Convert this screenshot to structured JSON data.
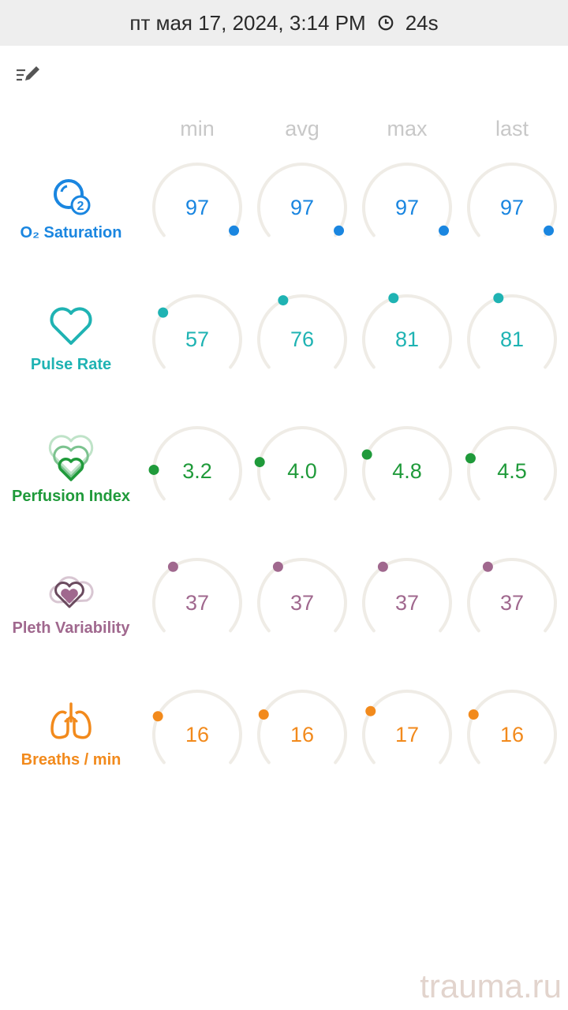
{
  "header": {
    "datetime": "пт мая 17, 2024, 3:14 PM",
    "duration": "24s",
    "icon": "clock-icon"
  },
  "toolbar": {
    "edit_icon": "list-edit-icon"
  },
  "columns": [
    "min",
    "avg",
    "max",
    "last"
  ],
  "metrics": [
    {
      "name": "O₂ Saturation",
      "icon": "o2-saturation-icon",
      "color": "#1a86e0",
      "values": [
        "97",
        "97",
        "97",
        "97"
      ],
      "levels": [
        0.97,
        0.97,
        0.97,
        0.97
      ]
    },
    {
      "name": "Pulse Rate",
      "icon": "heart-icon",
      "color": "#1fb3b3",
      "values": [
        "57",
        "76",
        "81",
        "81"
      ],
      "levels": [
        0.3,
        0.4,
        0.43,
        0.43
      ]
    },
    {
      "name": "Perfusion Index",
      "icon": "perfusion-hearts-icon",
      "color": "#1f9a3a",
      "values": [
        "3.2",
        "4.0",
        "4.8",
        "4.5"
      ],
      "levels": [
        0.16,
        0.2,
        0.24,
        0.22
      ]
    },
    {
      "name": "Pleth Variability",
      "icon": "pleth-cloud-heart-icon",
      "color": "#a0688e",
      "values": [
        "37",
        "37",
        "37",
        "37"
      ],
      "levels": [
        0.37,
        0.37,
        0.37,
        0.37
      ]
    },
    {
      "name": "Breaths / min",
      "icon": "lungs-icon",
      "color": "#f28a1c",
      "values": [
        "16",
        "16",
        "17",
        "16"
      ],
      "levels": [
        0.25,
        0.26,
        0.28,
        0.26
      ]
    }
  ],
  "watermark": "trauma.ru"
}
